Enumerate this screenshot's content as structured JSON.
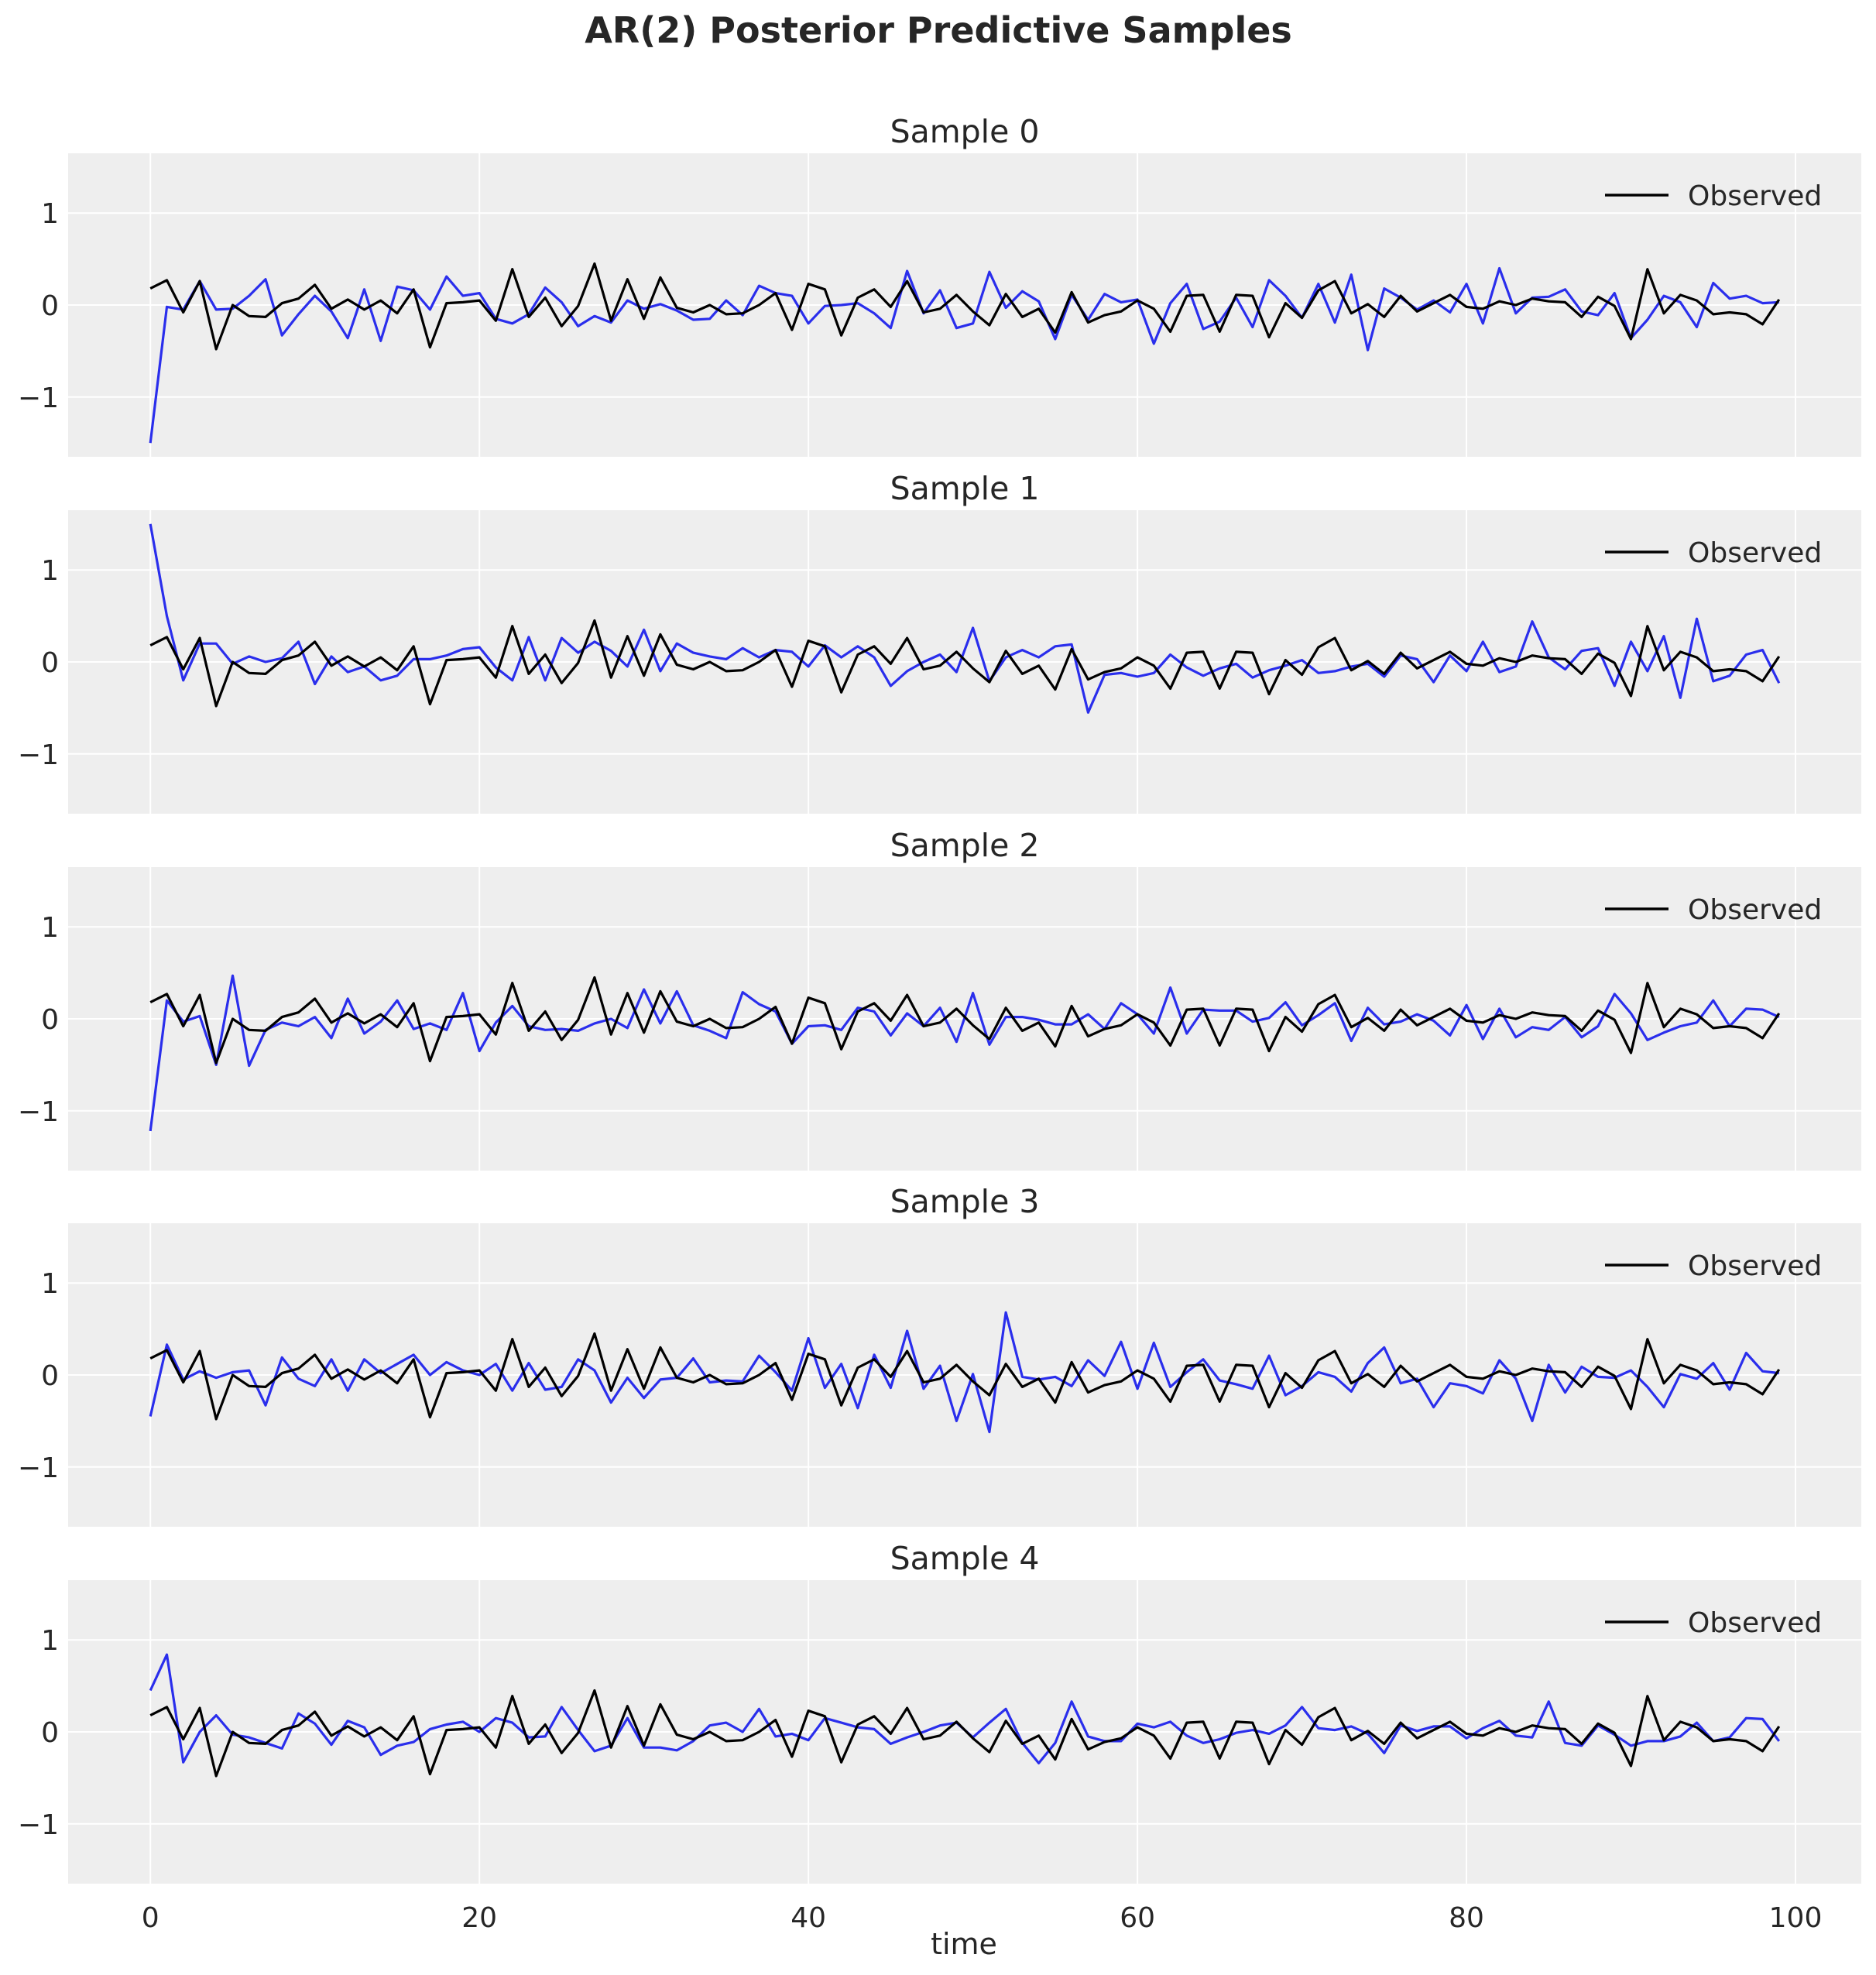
{
  "chart_data": {
    "type": "line",
    "title": "AR(2) Posterior Predictive Samples",
    "xlabel": "time",
    "xlim": [
      -5,
      104
    ],
    "ylim": [
      -1.65,
      1.65
    ],
    "xticks": [
      0,
      20,
      40,
      60,
      80,
      100
    ],
    "yticks": [
      -1,
      0,
      1
    ],
    "ytick_labels": [
      "−1",
      "0",
      "1"
    ],
    "grid": true,
    "legend_position": "top-right",
    "colors": {
      "observed": "#000000",
      "sample": "#2a2eec",
      "axes_bg": "#eeeeee",
      "grid": "#ffffff"
    },
    "observed": {
      "name": "Observed",
      "values": [
        0.18,
        0.27,
        -0.08,
        0.26,
        -0.48,
        0.0,
        -0.12,
        -0.13,
        0.02,
        0.07,
        0.22,
        -0.04,
        0.06,
        -0.05,
        0.05,
        -0.09,
        0.17,
        -0.46,
        0.02,
        0.03,
        0.05,
        -0.17,
        0.39,
        -0.13,
        0.08,
        -0.23,
        -0.01,
        0.45,
        -0.17,
        0.28,
        -0.15,
        0.3,
        -0.03,
        -0.08,
        0.0,
        -0.1,
        -0.09,
        0.0,
        0.13,
        -0.27,
        0.23,
        0.17,
        -0.33,
        0.08,
        0.17,
        -0.02,
        0.26,
        -0.08,
        -0.04,
        0.11,
        -0.07,
        -0.22,
        0.12,
        -0.13,
        -0.04,
        -0.3,
        0.14,
        -0.19,
        -0.11,
        -0.07,
        0.05,
        -0.04,
        -0.29,
        0.1,
        0.11,
        -0.29,
        0.11,
        0.1,
        -0.35,
        0.02,
        -0.14,
        0.16,
        0.26,
        -0.09,
        0.01,
        -0.13,
        0.1,
        -0.07,
        0.02,
        0.11,
        -0.02,
        -0.04,
        0.04,
        0.0,
        0.07,
        0.04,
        0.03,
        -0.13,
        0.09,
        -0.01,
        -0.37,
        0.39,
        -0.09,
        0.11,
        0.05,
        -0.1,
        -0.08,
        -0.1,
        -0.21,
        0.06
      ]
    },
    "series": [
      {
        "panel_title": "Sample 0",
        "values": [
          -1.5,
          -0.02,
          -0.05,
          0.26,
          -0.05,
          -0.04,
          0.1,
          0.28,
          -0.33,
          -0.1,
          0.1,
          -0.07,
          -0.36,
          0.17,
          -0.39,
          0.2,
          0.16,
          -0.05,
          0.31,
          0.1,
          0.13,
          -0.15,
          -0.2,
          -0.1,
          0.19,
          0.03,
          -0.23,
          -0.12,
          -0.19,
          0.05,
          -0.04,
          0.01,
          -0.06,
          -0.16,
          -0.15,
          0.05,
          -0.11,
          0.21,
          0.13,
          0.1,
          -0.2,
          -0.01,
          0.0,
          0.02,
          -0.09,
          -0.25,
          0.37,
          -0.09,
          0.16,
          -0.25,
          -0.2,
          0.36,
          -0.03,
          0.15,
          0.04,
          -0.37,
          0.11,
          -0.16,
          0.12,
          0.03,
          0.06,
          -0.42,
          0.02,
          0.23,
          -0.26,
          -0.18,
          0.08,
          -0.24,
          0.27,
          0.1,
          -0.14,
          0.23,
          -0.19,
          0.33,
          -0.49,
          0.18,
          0.08,
          -0.05,
          0.05,
          -0.08,
          0.23,
          -0.2,
          0.4,
          -0.09,
          0.08,
          0.09,
          0.17,
          -0.07,
          -0.11,
          0.13,
          -0.36,
          -0.16,
          0.1,
          0.03,
          -0.24,
          0.24,
          0.07,
          0.1,
          0.02,
          0.03
        ]
      },
      {
        "panel_title": "Sample 1",
        "values": [
          1.5,
          0.5,
          -0.2,
          0.2,
          0.2,
          -0.02,
          0.06,
          0.0,
          0.04,
          0.22,
          -0.24,
          0.06,
          -0.11,
          -0.05,
          -0.2,
          -0.15,
          0.03,
          0.03,
          0.07,
          0.14,
          0.16,
          -0.06,
          -0.2,
          0.27,
          -0.2,
          0.26,
          0.1,
          0.22,
          0.12,
          -0.05,
          0.35,
          -0.1,
          0.2,
          0.1,
          0.06,
          0.03,
          0.15,
          0.05,
          0.13,
          0.11,
          -0.05,
          0.18,
          0.05,
          0.17,
          0.05,
          -0.26,
          -0.1,
          0.0,
          0.08,
          -0.11,
          0.37,
          -0.21,
          0.05,
          0.13,
          0.05,
          0.17,
          0.19,
          -0.55,
          -0.14,
          -0.12,
          -0.16,
          -0.12,
          0.08,
          -0.06,
          -0.15,
          -0.07,
          -0.02,
          -0.17,
          -0.09,
          -0.04,
          0.02,
          -0.12,
          -0.1,
          -0.05,
          -0.02,
          -0.16,
          0.07,
          0.03,
          -0.22,
          0.07,
          -0.1,
          0.22,
          -0.11,
          -0.05,
          0.44,
          0.05,
          -0.08,
          0.12,
          0.15,
          -0.26,
          0.22,
          -0.1,
          0.28,
          -0.39,
          0.47,
          -0.21,
          -0.15,
          0.08,
          0.13,
          -0.23
        ]
      },
      {
        "panel_title": "Sample 2",
        "values": [
          -1.22,
          0.2,
          -0.03,
          0.03,
          -0.5,
          0.47,
          -0.51,
          -0.12,
          -0.04,
          -0.08,
          0.02,
          -0.21,
          0.22,
          -0.16,
          -0.03,
          0.2,
          -0.11,
          -0.05,
          -0.12,
          0.28,
          -0.35,
          -0.04,
          0.14,
          -0.08,
          -0.12,
          -0.11,
          -0.13,
          -0.05,
          0.0,
          -0.1,
          0.32,
          -0.05,
          0.3,
          -0.07,
          -0.13,
          -0.21,
          0.29,
          0.16,
          0.08,
          -0.27,
          -0.08,
          -0.07,
          -0.12,
          0.12,
          0.08,
          -0.18,
          0.06,
          -0.08,
          0.12,
          -0.25,
          0.28,
          -0.28,
          0.02,
          0.02,
          -0.01,
          -0.06,
          -0.06,
          0.05,
          -0.11,
          0.17,
          0.05,
          -0.16,
          0.34,
          -0.16,
          0.1,
          0.09,
          0.09,
          -0.03,
          0.01,
          0.18,
          -0.07,
          0.04,
          0.17,
          -0.24,
          0.12,
          -0.06,
          -0.03,
          0.05,
          -0.02,
          -0.18,
          0.15,
          -0.22,
          0.11,
          -0.2,
          -0.09,
          -0.12,
          0.02,
          -0.2,
          -0.08,
          0.27,
          0.06,
          -0.23,
          -0.15,
          -0.08,
          -0.04,
          0.2,
          -0.08,
          0.11,
          0.1,
          0.02
        ]
      },
      {
        "panel_title": "Sample 3",
        "values": [
          -0.45,
          0.33,
          -0.05,
          0.04,
          -0.03,
          0.03,
          0.05,
          -0.33,
          0.19,
          -0.04,
          -0.12,
          0.17,
          -0.17,
          0.17,
          0.02,
          0.12,
          0.22,
          0.0,
          0.14,
          0.05,
          0.0,
          0.12,
          -0.17,
          0.13,
          -0.16,
          -0.13,
          0.17,
          0.05,
          -0.3,
          -0.03,
          -0.25,
          -0.05,
          -0.03,
          0.18,
          -0.08,
          -0.06,
          -0.07,
          0.21,
          0.03,
          -0.17,
          0.4,
          -0.14,
          0.12,
          -0.36,
          0.22,
          -0.14,
          0.48,
          -0.15,
          0.1,
          -0.5,
          0.01,
          -0.62,
          0.68,
          -0.02,
          -0.05,
          -0.02,
          -0.12,
          0.16,
          -0.01,
          0.36,
          -0.15,
          0.35,
          -0.13,
          0.03,
          0.17,
          -0.06,
          -0.1,
          -0.15,
          0.21,
          -0.22,
          -0.12,
          0.03,
          -0.02,
          -0.18,
          0.13,
          0.3,
          -0.09,
          -0.04,
          -0.35,
          -0.09,
          -0.12,
          -0.2,
          0.16,
          -0.04,
          -0.5,
          0.11,
          -0.19,
          0.09,
          -0.02,
          -0.03,
          0.05,
          -0.13,
          -0.35,
          0.01,
          -0.04,
          0.13,
          -0.16,
          0.24,
          0.04,
          0.02
        ]
      },
      {
        "panel_title": "Sample 4",
        "values": [
          0.45,
          0.84,
          -0.33,
          0.0,
          0.18,
          -0.03,
          -0.06,
          -0.12,
          -0.18,
          0.2,
          0.09,
          -0.14,
          0.12,
          0.05,
          -0.25,
          -0.15,
          -0.11,
          0.03,
          0.08,
          0.11,
          0.0,
          0.15,
          0.1,
          -0.06,
          -0.05,
          0.27,
          0.02,
          -0.21,
          -0.15,
          0.15,
          -0.17,
          -0.17,
          -0.2,
          -0.1,
          0.07,
          0.1,
          0.0,
          0.25,
          -0.05,
          -0.02,
          -0.09,
          0.15,
          0.1,
          0.05,
          0.03,
          -0.13,
          -0.06,
          0.0,
          0.07,
          0.1,
          -0.06,
          0.1,
          0.25,
          -0.12,
          -0.34,
          -0.12,
          0.33,
          -0.05,
          -0.1,
          -0.1,
          0.09,
          0.05,
          0.11,
          -0.04,
          -0.12,
          -0.08,
          -0.01,
          0.02,
          -0.02,
          0.07,
          0.27,
          0.04,
          0.02,
          0.06,
          -0.02,
          -0.23,
          0.07,
          0.01,
          0.06,
          0.06,
          -0.07,
          0.04,
          0.12,
          -0.04,
          -0.06,
          0.33,
          -0.12,
          -0.15,
          0.07,
          -0.03,
          -0.15,
          -0.1,
          -0.1,
          -0.05,
          0.1,
          -0.1,
          -0.06,
          0.15,
          0.14,
          -0.1
        ]
      }
    ]
  }
}
